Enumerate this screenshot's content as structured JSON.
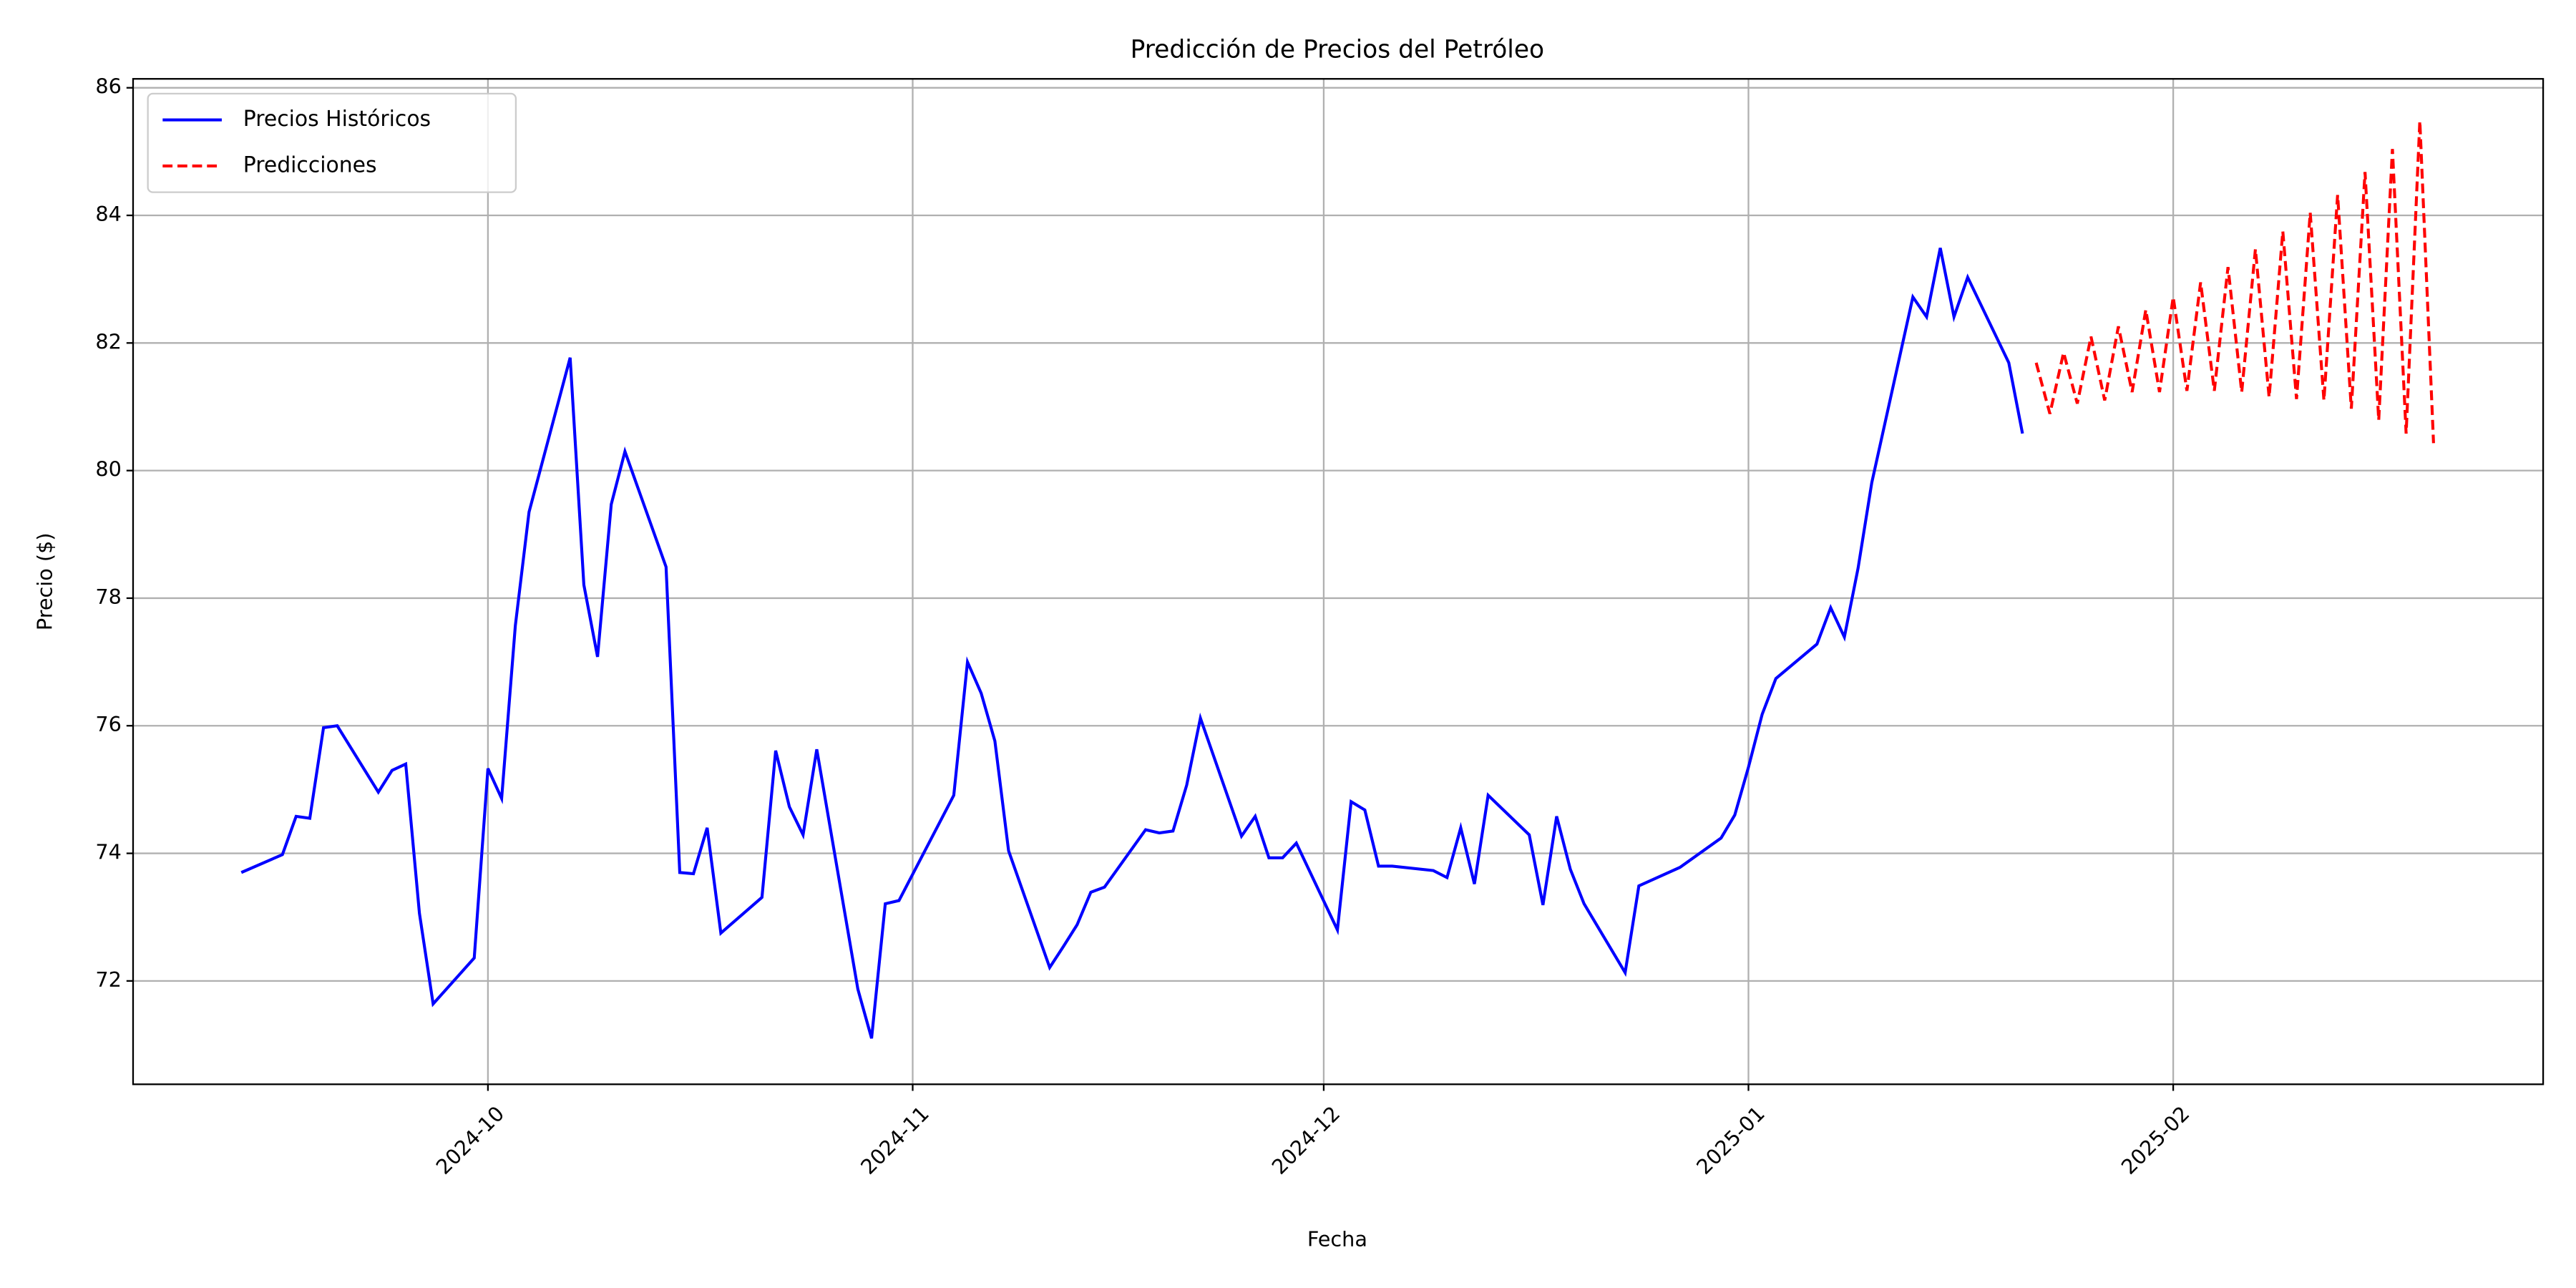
{
  "chart_data": {
    "type": "line",
    "title": "Predicción de Precios del Petróleo",
    "x_label": "Fecha",
    "y_label": "Precio ($)",
    "xlim": [
      -25.9,
      150
    ],
    "ylim": [
      70.38,
      86.14
    ],
    "xticks": [
      {
        "value": 0,
        "label": "2024-10"
      },
      {
        "value": 31,
        "label": "2024-11"
      },
      {
        "value": 61,
        "label": "2024-12"
      },
      {
        "value": 92,
        "label": "2025-01"
      },
      {
        "value": 123,
        "label": "2025-02"
      }
    ],
    "yticks": [
      72,
      74,
      76,
      78,
      80,
      82,
      84,
      86
    ],
    "grid": true,
    "legend": "upper left",
    "series": [
      {
        "name": "Precios Históricos",
        "color": "#0000ff",
        "dash": "solid",
        "x": [
          -18,
          -15,
          -14,
          -13,
          -12,
          -11,
          -8,
          -7,
          -6,
          -5,
          -4,
          -1,
          0,
          1,
          2,
          3,
          6,
          7,
          8,
          9,
          10,
          13,
          14,
          15,
          16,
          17,
          20,
          21,
          22,
          23,
          24,
          27,
          28,
          29,
          30,
          34,
          35,
          36,
          37,
          38,
          41,
          42,
          43,
          44,
          45,
          48,
          49,
          50,
          51,
          52,
          55,
          56,
          57,
          58,
          59,
          62,
          63,
          64,
          65,
          66,
          69,
          70,
          71,
          72,
          73,
          76,
          77,
          78,
          79,
          80,
          83,
          84,
          87,
          90,
          91,
          92,
          93,
          94,
          97,
          98,
          99,
          100,
          101,
          104,
          105,
          106,
          107,
          108,
          111,
          112
        ],
        "values": [
          73.7,
          73.98,
          74.58,
          74.55,
          75.97,
          76.0,
          74.96,
          75.3,
          75.4,
          73.06,
          71.64,
          72.36,
          75.33,
          74.86,
          77.57,
          79.35,
          81.77,
          78.21,
          77.08,
          79.47,
          80.3,
          78.49,
          73.7,
          73.68,
          74.4,
          72.75,
          73.31,
          75.61,
          74.73,
          74.29,
          75.63,
          71.87,
          71.1,
          73.21,
          73.26,
          74.91,
          77.0,
          76.51,
          75.76,
          74.04,
          72.21,
          72.54,
          72.88,
          73.39,
          73.47,
          74.37,
          74.32,
          74.35,
          75.07,
          76.12,
          74.27,
          74.58,
          73.93,
          73.93,
          74.16,
          72.8,
          74.81,
          74.68,
          73.8,
          73.8,
          73.73,
          73.62,
          74.4,
          73.52,
          74.91,
          74.29,
          73.19,
          74.58,
          73.75,
          73.21,
          72.13,
          73.49,
          73.78,
          74.24,
          74.6,
          75.35,
          76.18,
          76.74,
          77.28,
          77.85,
          77.39,
          78.47,
          79.81,
          82.72,
          82.41,
          83.49,
          82.41,
          83.03,
          81.69,
          80.58
        ]
      },
      {
        "name": "Predicciones",
        "color": "#ff0000",
        "dash": "dashed",
        "x": [
          113,
          114,
          115,
          116,
          117,
          118,
          119,
          120,
          121,
          122,
          123,
          124,
          125,
          126,
          127,
          128,
          129,
          130,
          131,
          132,
          133,
          134,
          135,
          136,
          137,
          138,
          139,
          140,
          141,
          142
        ],
        "values": [
          81.69,
          80.89,
          81.85,
          81.05,
          82.1,
          81.1,
          82.26,
          81.23,
          82.52,
          81.23,
          82.72,
          81.25,
          82.95,
          81.25,
          83.19,
          81.23,
          83.47,
          81.15,
          83.75,
          81.12,
          84.04,
          81.1,
          84.32,
          80.97,
          84.68,
          80.79,
          85.04,
          80.58,
          85.48,
          80.43
        ]
      }
    ]
  }
}
